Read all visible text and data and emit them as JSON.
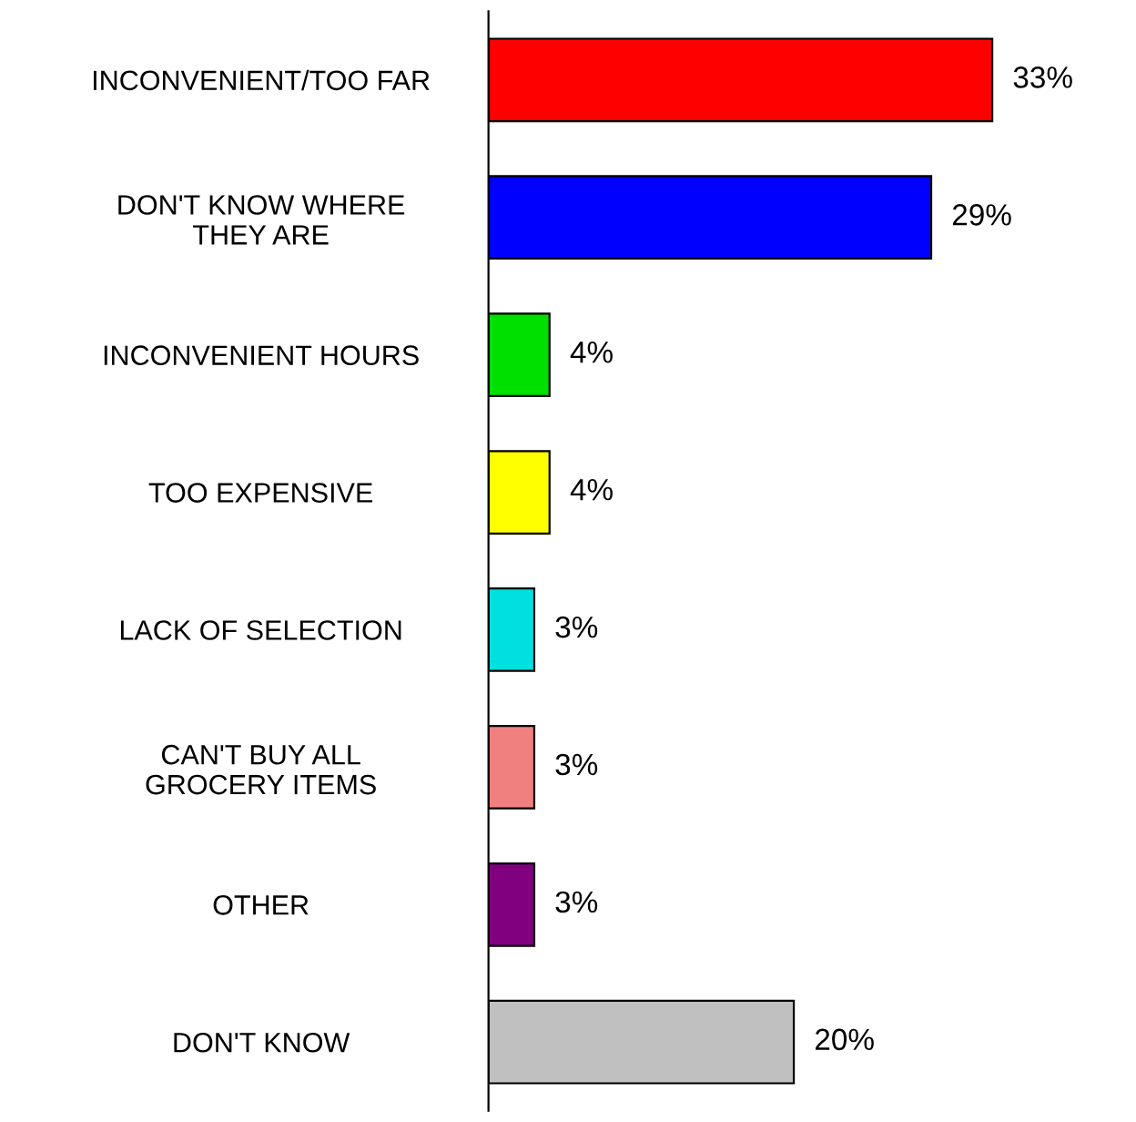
{
  "chart_data": {
    "type": "bar",
    "orientation": "horizontal",
    "categories": [
      "INCONVENIENT/TOO FAR",
      "DON'T KNOW WHERE\nTHEY ARE",
      "INCONVENIENT HOURS",
      "TOO EXPENSIVE",
      "LACK OF SELECTION",
      "CAN'T BUY ALL\nGROCERY ITEMS",
      "OTHER",
      "DON'T KNOW"
    ],
    "values": [
      33,
      29,
      4,
      4,
      3,
      3,
      3,
      20
    ],
    "colors": [
      "#ff0000",
      "#0000ff",
      "#00e000",
      "#ffff00",
      "#00e0e0",
      "#f08080",
      "#800080",
      "#c0c0c0"
    ],
    "value_labels": [
      "33%",
      "29%",
      "4%",
      "4%",
      "3%",
      "3%",
      "3%",
      "20%"
    ],
    "tick_labels": "y",
    "grid": false,
    "legend": false
  }
}
